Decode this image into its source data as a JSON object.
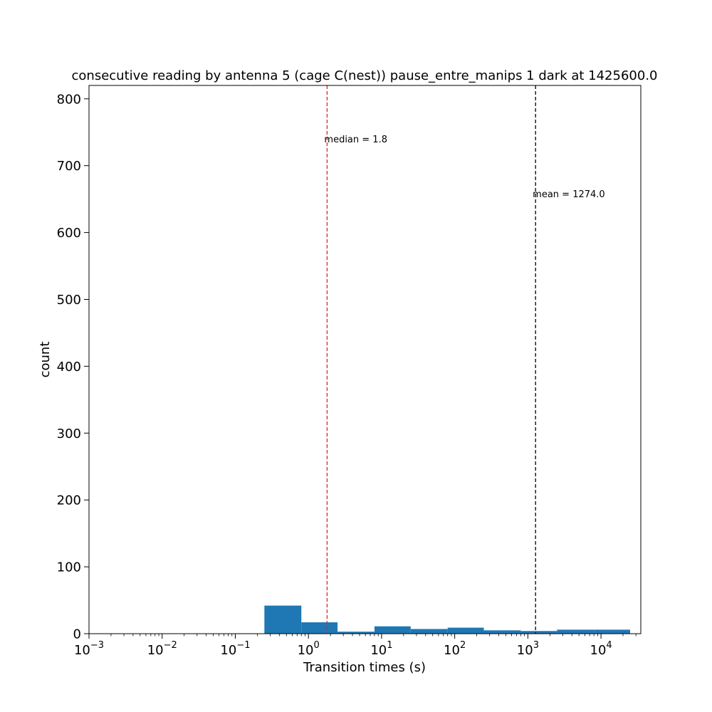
{
  "chart_data": {
    "type": "bar",
    "title": "consecutive reading by antenna 5 (cage C(nest)) pause_entre_manips 1 dark at 1425600.0",
    "xlabel": "Transition times (s)",
    "ylabel": "count",
    "xscale": "log",
    "xlim": [
      0.001,
      35000
    ],
    "ylim": [
      0,
      820
    ],
    "grid": false,
    "x_tick_labels": [
      {
        "value": 0.001,
        "base": "10",
        "exp": "−3"
      },
      {
        "value": 0.01,
        "base": "10",
        "exp": "−2"
      },
      {
        "value": 0.1,
        "base": "10",
        "exp": "−1"
      },
      {
        "value": 1,
        "base": "10",
        "exp": "0"
      },
      {
        "value": 10,
        "base": "10",
        "exp": "1"
      },
      {
        "value": 100,
        "base": "10",
        "exp": "2"
      },
      {
        "value": 1000,
        "base": "10",
        "exp": "3"
      },
      {
        "value": 10000,
        "base": "10",
        "exp": "4"
      }
    ],
    "y_ticks": [
      0,
      100,
      200,
      300,
      400,
      500,
      600,
      700,
      800
    ],
    "y_tick_labels": [
      "0",
      "100",
      "200",
      "300",
      "400",
      "500",
      "600",
      "700",
      "800"
    ],
    "bins": [
      {
        "x0": 0.25,
        "x1": 0.8,
        "count": 42
      },
      {
        "x0": 0.8,
        "x1": 2.5,
        "count": 17
      },
      {
        "x0": 2.5,
        "x1": 8,
        "count": 3
      },
      {
        "x0": 8,
        "x1": 25,
        "count": 11
      },
      {
        "x0": 25,
        "x1": 80,
        "count": 7
      },
      {
        "x0": 80,
        "x1": 250,
        "count": 9
      },
      {
        "x0": 250,
        "x1": 800,
        "count": 5
      },
      {
        "x0": 800,
        "x1": 2500,
        "count": 4
      },
      {
        "x0": 2500,
        "x1": 8000,
        "count": 6
      },
      {
        "x0": 8000,
        "x1": 25000,
        "count": 6
      }
    ],
    "bar_color": "#1f77b4",
    "reference_lines": [
      {
        "name": "median",
        "value": 1.8,
        "label": "median =  1.8",
        "label_y": 740,
        "color": "#d62728"
      },
      {
        "name": "mean",
        "value": 1274.0,
        "label": "mean = 1274.0",
        "label_y": 658,
        "color": "#000000"
      }
    ]
  }
}
